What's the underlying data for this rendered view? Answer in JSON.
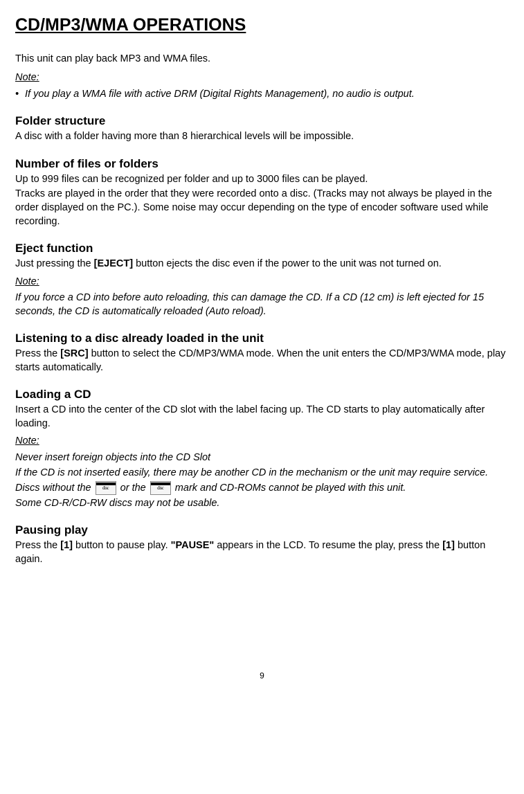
{
  "title": "CD/MP3/WMA OPERATIONS",
  "intro": "This unit can play back MP3 and WMA files.",
  "noteLabel": "Note:",
  "topNote": "If you play a WMA file with active DRM (Digital Rights Management), no audio is output.",
  "sections": {
    "folder": {
      "title": "Folder structure",
      "body": "A disc with a folder having more than 8 hierarchical levels will be impossible."
    },
    "number": {
      "title": "Number of files or folders",
      "body1": "Up to 999 files can be recognized per folder and up to 3000 files can be played.",
      "body2": "Tracks are played in the order that they were recorded onto a disc. (Tracks may not always be played in the order displayed on the PC.). Some noise may occur depending on the type of encoder software used while recording."
    },
    "eject": {
      "title": "Eject function",
      "pre": "Just pressing the ",
      "bold": "[EJECT]",
      "post": " button ejects the disc even if the power to the unit was not turned on.",
      "note": "If you force a CD into before auto reloading, this can damage the CD. If a CD (12 cm) is left ejected for 15 seconds, the CD is automatically reloaded (Auto reload)."
    },
    "listening": {
      "title": "Listening to a disc already loaded in the unit",
      "pre": "Press the ",
      "bold": "[SRC]",
      "post": " button to select the CD/MP3/WMA mode. When the unit enters the CD/MP3/WMA mode, play starts automatically."
    },
    "loading": {
      "title": "Loading a CD",
      "body": "Insert a CD into the center of the CD slot with the label facing up. The CD starts to play automatically after loading.",
      "note1": "Never insert foreign objects into the CD Slot",
      "note2": "If the CD is not inserted easily, there may be another CD in the mechanism or the unit may require service.",
      "note3a": "Discs without the ",
      "note3b": " or the ",
      "note3c": " mark and CD-ROMs cannot be played with this unit.",
      "note4": "Some CD-R/CD-RW discs may not be usable."
    },
    "pausing": {
      "title": "Pausing play",
      "p1": "Press the ",
      "b1": "[1]",
      "p2": " button to pause play. ",
      "b2": "\"PAUSE\"",
      "p3": " appears in the LCD. To resume the play, press the ",
      "b3": "[1]",
      "p4": " button again."
    }
  },
  "pageNumber": "9"
}
